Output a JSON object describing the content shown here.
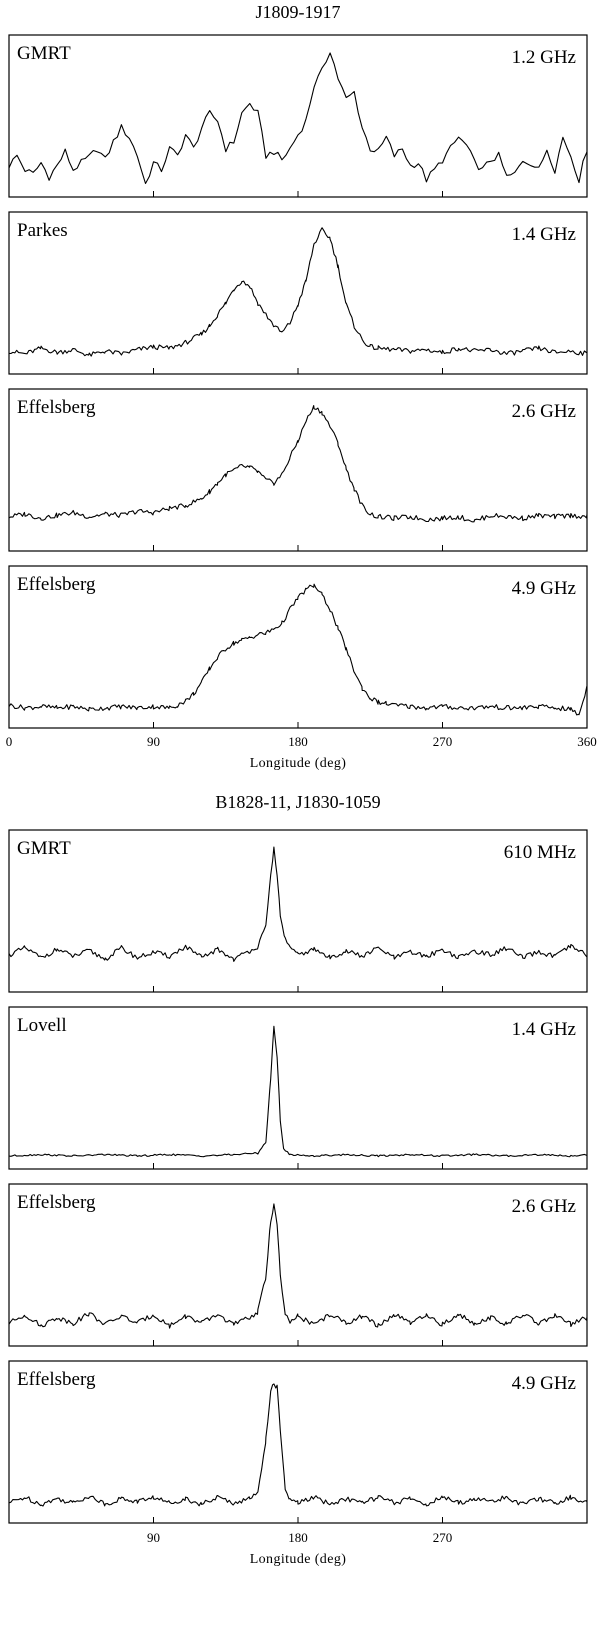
{
  "chart_data": [
    {
      "type": "line",
      "title": "J1809-1917",
      "xlabel": "Longitude  (deg)",
      "ylabel": "",
      "xlim": [
        0,
        360
      ],
      "xticks": [
        0,
        90,
        180,
        270,
        360
      ],
      "panels": [
        {
          "telescope": "GMRT",
          "frequency": "1.2 GHz",
          "x": [
            0,
            5,
            10,
            15,
            20,
            25,
            30,
            35,
            40,
            45,
            50,
            55,
            60,
            65,
            70,
            75,
            80,
            85,
            90,
            95,
            100,
            105,
            110,
            115,
            120,
            125,
            130,
            135,
            140,
            145,
            150,
            155,
            160,
            165,
            170,
            175,
            180,
            185,
            190,
            195,
            200,
            205,
            210,
            215,
            220,
            225,
            230,
            235,
            240,
            245,
            250,
            255,
            260,
            265,
            270,
            275,
            280,
            285,
            290,
            295,
            300,
            305,
            310,
            315,
            320,
            325,
            330,
            335,
            340,
            345,
            350,
            355,
            360
          ],
          "y": [
            0.18,
            0.25,
            0.15,
            0.12,
            0.2,
            0.1,
            0.18,
            0.28,
            0.15,
            0.2,
            0.24,
            0.3,
            0.22,
            0.35,
            0.45,
            0.38,
            0.25,
            0.05,
            0.2,
            0.15,
            0.3,
            0.25,
            0.4,
            0.3,
            0.45,
            0.55,
            0.5,
            0.3,
            0.35,
            0.55,
            0.62,
            0.55,
            0.25,
            0.28,
            0.22,
            0.3,
            0.4,
            0.5,
            0.75,
            0.85,
            1.0,
            0.8,
            0.65,
            0.7,
            0.45,
            0.3,
            0.28,
            0.38,
            0.25,
            0.3,
            0.18,
            0.2,
            0.08,
            0.15,
            0.22,
            0.3,
            0.38,
            0.32,
            0.2,
            0.15,
            0.22,
            0.25,
            0.1,
            0.12,
            0.22,
            0.2,
            0.15,
            0.3,
            0.15,
            0.38,
            0.25,
            0.08,
            0.3
          ],
          "ylim": [
            0,
            1.05
          ]
        },
        {
          "telescope": "Parkes",
          "frequency": "1.4 GHz",
          "x": [
            0,
            10,
            20,
            30,
            40,
            50,
            60,
            70,
            80,
            90,
            100,
            110,
            120,
            125,
            130,
            135,
            140,
            145,
            150,
            155,
            160,
            165,
            170,
            175,
            180,
            185,
            190,
            195,
            200,
            205,
            210,
            215,
            220,
            225,
            230,
            240,
            250,
            260,
            270,
            280,
            290,
            300,
            310,
            320,
            330,
            340,
            350,
            360
          ],
          "y": [
            0.12,
            0.1,
            0.14,
            0.11,
            0.13,
            0.09,
            0.12,
            0.1,
            0.13,
            0.15,
            0.14,
            0.18,
            0.24,
            0.3,
            0.38,
            0.46,
            0.56,
            0.62,
            0.58,
            0.46,
            0.38,
            0.3,
            0.25,
            0.32,
            0.45,
            0.62,
            0.88,
            0.98,
            0.92,
            0.72,
            0.45,
            0.3,
            0.2,
            0.15,
            0.14,
            0.13,
            0.12,
            0.13,
            0.11,
            0.14,
            0.12,
            0.13,
            0.1,
            0.12,
            0.14,
            0.11,
            0.12,
            0.1
          ],
          "ylim": [
            0,
            1.05
          ]
        },
        {
          "telescope": "Effelsberg",
          "frequency": "2.6 GHz",
          "x": [
            0,
            10,
            20,
            30,
            40,
            50,
            60,
            70,
            80,
            90,
            100,
            110,
            120,
            125,
            130,
            135,
            140,
            145,
            150,
            155,
            160,
            165,
            170,
            175,
            180,
            185,
            190,
            195,
            200,
            205,
            210,
            215,
            220,
            225,
            230,
            240,
            250,
            260,
            270,
            280,
            290,
            300,
            310,
            320,
            330,
            340,
            350,
            360
          ],
          "y": [
            0.2,
            0.22,
            0.19,
            0.21,
            0.23,
            0.2,
            0.22,
            0.21,
            0.24,
            0.23,
            0.26,
            0.28,
            0.33,
            0.38,
            0.44,
            0.5,
            0.53,
            0.56,
            0.55,
            0.52,
            0.46,
            0.44,
            0.5,
            0.62,
            0.74,
            0.88,
            0.98,
            0.94,
            0.84,
            0.72,
            0.54,
            0.4,
            0.28,
            0.22,
            0.2,
            0.19,
            0.2,
            0.18,
            0.19,
            0.2,
            0.17,
            0.21,
            0.2,
            0.19,
            0.21,
            0.2,
            0.21,
            0.2
          ],
          "ylim": [
            0,
            1.05
          ]
        },
        {
          "telescope": "Effelsberg",
          "frequency": "4.9 GHz",
          "x": [
            0,
            10,
            20,
            30,
            40,
            50,
            60,
            70,
            80,
            90,
            100,
            105,
            110,
            115,
            120,
            125,
            130,
            135,
            140,
            145,
            150,
            155,
            160,
            165,
            170,
            175,
            180,
            185,
            190,
            195,
            200,
            205,
            210,
            215,
            220,
            225,
            230,
            235,
            240,
            250,
            260,
            270,
            280,
            290,
            300,
            310,
            320,
            330,
            340,
            350,
            355,
            360
          ],
          "y": [
            0.12,
            0.1,
            0.11,
            0.1,
            0.11,
            0.09,
            0.1,
            0.11,
            0.1,
            0.11,
            0.1,
            0.12,
            0.15,
            0.2,
            0.28,
            0.38,
            0.46,
            0.52,
            0.56,
            0.58,
            0.6,
            0.62,
            0.63,
            0.66,
            0.7,
            0.8,
            0.88,
            0.94,
            0.97,
            0.9,
            0.8,
            0.66,
            0.52,
            0.36,
            0.24,
            0.17,
            0.14,
            0.13,
            0.12,
            0.11,
            0.1,
            0.11,
            0.1,
            0.1,
            0.11,
            0.1,
            0.1,
            0.11,
            0.1,
            0.09,
            0.05,
            0.25
          ],
          "ylim": [
            0,
            1.05
          ]
        }
      ]
    },
    {
      "type": "line",
      "title": "B1828-11, J1830-1059",
      "xlabel": "Longitude  (deg)",
      "ylabel": "",
      "xlim": [
        0,
        360
      ],
      "xticks": [
        90,
        180,
        270
      ],
      "panels": [
        {
          "telescope": "GMRT",
          "frequency": "610 MHz",
          "x": [
            0,
            10,
            20,
            30,
            40,
            50,
            60,
            70,
            80,
            90,
            100,
            110,
            120,
            130,
            140,
            150,
            155,
            160,
            163,
            165,
            167,
            169,
            172,
            175,
            180,
            190,
            200,
            210,
            220,
            230,
            240,
            250,
            260,
            270,
            280,
            290,
            300,
            310,
            320,
            330,
            340,
            350,
            360
          ],
          "y": [
            0.22,
            0.27,
            0.2,
            0.26,
            0.21,
            0.25,
            0.19,
            0.27,
            0.2,
            0.24,
            0.21,
            0.28,
            0.2,
            0.26,
            0.19,
            0.25,
            0.28,
            0.42,
            0.78,
            0.98,
            0.8,
            0.48,
            0.34,
            0.27,
            0.22,
            0.26,
            0.2,
            0.25,
            0.21,
            0.27,
            0.2,
            0.24,
            0.21,
            0.26,
            0.2,
            0.25,
            0.22,
            0.27,
            0.2,
            0.24,
            0.21,
            0.28,
            0.22
          ],
          "ylim": [
            0,
            1.05
          ]
        },
        {
          "telescope": "Lovell",
          "frequency": "1.4 GHz",
          "x": [
            0,
            20,
            40,
            60,
            80,
            100,
            120,
            140,
            155,
            160,
            163,
            165,
            167,
            169,
            171,
            175,
            190,
            210,
            230,
            250,
            270,
            290,
            310,
            330,
            350,
            360
          ],
          "y": [
            0.05,
            0.06,
            0.05,
            0.06,
            0.05,
            0.06,
            0.05,
            0.06,
            0.07,
            0.15,
            0.6,
            0.97,
            0.75,
            0.3,
            0.1,
            0.06,
            0.05,
            0.06,
            0.05,
            0.06,
            0.05,
            0.06,
            0.05,
            0.06,
            0.05,
            0.06
          ],
          "ylim": [
            0,
            1.05
          ]
        },
        {
          "telescope": "Effelsberg",
          "frequency": "2.6 GHz",
          "x": [
            0,
            10,
            20,
            30,
            40,
            50,
            60,
            70,
            80,
            90,
            100,
            110,
            120,
            130,
            140,
            150,
            155,
            160,
            163,
            165,
            167,
            169,
            172,
            175,
            180,
            190,
            200,
            210,
            220,
            230,
            240,
            250,
            260,
            270,
            280,
            290,
            300,
            310,
            320,
            330,
            340,
            350,
            360
          ],
          "y": [
            0.12,
            0.18,
            0.1,
            0.16,
            0.12,
            0.19,
            0.11,
            0.17,
            0.12,
            0.18,
            0.1,
            0.17,
            0.12,
            0.18,
            0.11,
            0.16,
            0.2,
            0.45,
            0.85,
            0.96,
            0.82,
            0.45,
            0.18,
            0.12,
            0.17,
            0.11,
            0.18,
            0.12,
            0.17,
            0.1,
            0.18,
            0.12,
            0.17,
            0.11,
            0.18,
            0.12,
            0.16,
            0.11,
            0.18,
            0.12,
            0.17,
            0.11,
            0.16
          ],
          "ylim": [
            0,
            1.05
          ]
        },
        {
          "telescope": "Effelsberg",
          "frequency": "4.9 GHz",
          "x": [
            0,
            10,
            20,
            30,
            40,
            50,
            60,
            70,
            80,
            90,
            100,
            110,
            120,
            130,
            140,
            150,
            155,
            160,
            163,
            165,
            167,
            169,
            172,
            175,
            180,
            190,
            200,
            210,
            220,
            230,
            240,
            250,
            260,
            270,
            280,
            290,
            300,
            310,
            320,
            330,
            340,
            350,
            360
          ],
          "y": [
            0.1,
            0.14,
            0.09,
            0.13,
            0.1,
            0.15,
            0.09,
            0.13,
            0.11,
            0.14,
            0.1,
            0.13,
            0.09,
            0.14,
            0.1,
            0.13,
            0.18,
            0.55,
            0.9,
            0.94,
            0.92,
            0.6,
            0.2,
            0.12,
            0.1,
            0.14,
            0.09,
            0.13,
            0.1,
            0.14,
            0.1,
            0.13,
            0.09,
            0.14,
            0.1,
            0.13,
            0.11,
            0.14,
            0.09,
            0.13,
            0.1,
            0.14,
            0.1
          ],
          "ylim": [
            0,
            1.05
          ]
        }
      ]
    }
  ]
}
